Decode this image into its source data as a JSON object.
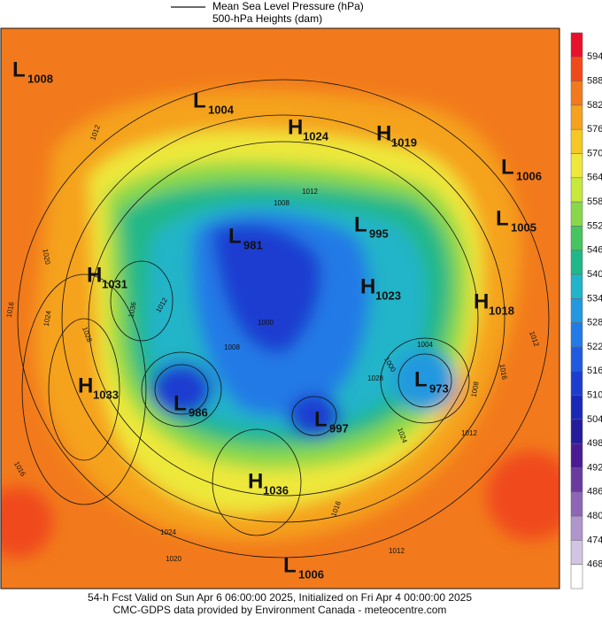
{
  "legend": [
    "Mean Sea Level Pressure (hPa)",
    "500-hPa Heights (dam)"
  ],
  "colorbar": {
    "levels": [
      594,
      588,
      582,
      576,
      570,
      564,
      558,
      552,
      546,
      540,
      534,
      528,
      522,
      516,
      510,
      504,
      498,
      492,
      486,
      480,
      474,
      468
    ],
    "colors": [
      "#e8102a",
      "#f04a1a",
      "#f27a1c",
      "#f5a21e",
      "#f5c824",
      "#eee83a",
      "#c8e83c",
      "#8ad84a",
      "#46c460",
      "#20b888",
      "#22b4c8",
      "#2298e0",
      "#227ae6",
      "#205ae0",
      "#1c3ed0",
      "#1a28b8",
      "#241c9c",
      "#4a1a94",
      "#6a3aa0",
      "#8e66b6",
      "#b096cc",
      "#d2c4e2",
      "#ffffff"
    ]
  },
  "pressure_centers": [
    {
      "symbol": "L",
      "value": "1008"
    },
    {
      "symbol": "L",
      "value": "1004"
    },
    {
      "symbol": "H",
      "value": "1024"
    },
    {
      "symbol": "H",
      "value": "1019"
    },
    {
      "symbol": "L",
      "value": "1006"
    },
    {
      "symbol": "L",
      "value": "1005"
    },
    {
      "symbol": "L",
      "value": "995"
    },
    {
      "symbol": "L",
      "value": "981"
    },
    {
      "symbol": "H",
      "value": "1031"
    },
    {
      "symbol": "H",
      "value": "1023"
    },
    {
      "symbol": "H",
      "value": "1018"
    },
    {
      "symbol": "H",
      "value": "1033"
    },
    {
      "symbol": "L",
      "value": "986"
    },
    {
      "symbol": "L",
      "value": "973"
    },
    {
      "symbol": "L",
      "value": "997"
    },
    {
      "symbol": "H",
      "value": "1036"
    },
    {
      "symbol": "L",
      "value": "1006"
    }
  ],
  "contour_labels": [
    "1012",
    "1012",
    "1008",
    "1020",
    "1016",
    "1024",
    "1028",
    "1036",
    "1012",
    "1008",
    "1004",
    "1000",
    "1000",
    "1028",
    "1024",
    "1012",
    "1016",
    "1008",
    "1012",
    "1016",
    "1024",
    "1020",
    "1016",
    "1012"
  ],
  "footer": [
    "54-h Fcst Valid on Sun Apr  6 06:00:00 2025, Initialized on Fri Apr  4 00:00:00 2025",
    "CMC-GDPS data provided by Environment Canada - meteocentre.com"
  ]
}
